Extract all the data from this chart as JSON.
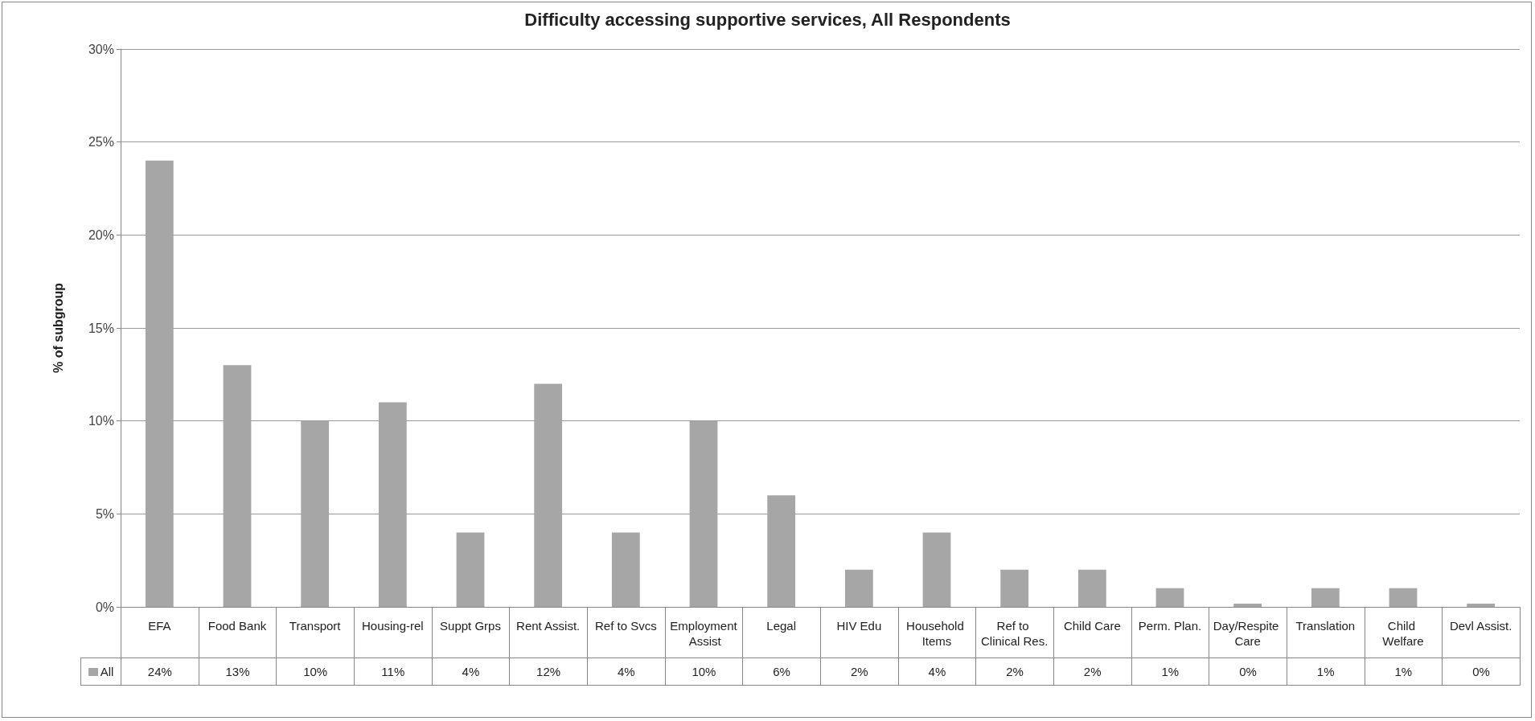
{
  "chart_data": {
    "type": "bar",
    "title": "Difficulty accessing supportive services, All Respondents",
    "ylabel": "% of subgroup",
    "categories": [
      "EFA",
      "Food Bank",
      "Transport",
      "Housing-rel",
      "Suppt Grps",
      "Rent Assist.",
      "Ref to Svcs",
      "Employment Assist",
      "Legal",
      "HIV Edu",
      "Household Items",
      "Ref to Clinical Res.",
      "Child Care",
      "Perm. Plan.",
      "Day/Respite Care",
      "Translation",
      "Child Welfare",
      "Devl Assist."
    ],
    "series": [
      {
        "name": "All",
        "color": "#a6a6a6",
        "values": [
          24,
          13,
          10,
          11,
          4,
          12,
          4,
          10,
          6,
          2,
          4,
          2,
          2,
          1,
          0,
          1,
          1,
          0
        ],
        "value_labels": [
          "24%",
          "13%",
          "10%",
          "11%",
          "4%",
          "12%",
          "4%",
          "10%",
          "6%",
          "2%",
          "4%",
          "2%",
          "2%",
          "1%",
          "0%",
          "1%",
          "1%",
          "0%"
        ]
      }
    ],
    "ylim": [
      0,
      30
    ],
    "yticks": [
      {
        "value": 0,
        "label": "0%"
      },
      {
        "value": 5,
        "label": "5%"
      },
      {
        "value": 10,
        "label": "10%"
      },
      {
        "value": 15,
        "label": "15%"
      },
      {
        "value": 20,
        "label": "20%"
      },
      {
        "value": 25,
        "label": "25%"
      },
      {
        "value": 30,
        "label": "30%"
      }
    ],
    "grid": "y",
    "legend": "bottom left"
  }
}
